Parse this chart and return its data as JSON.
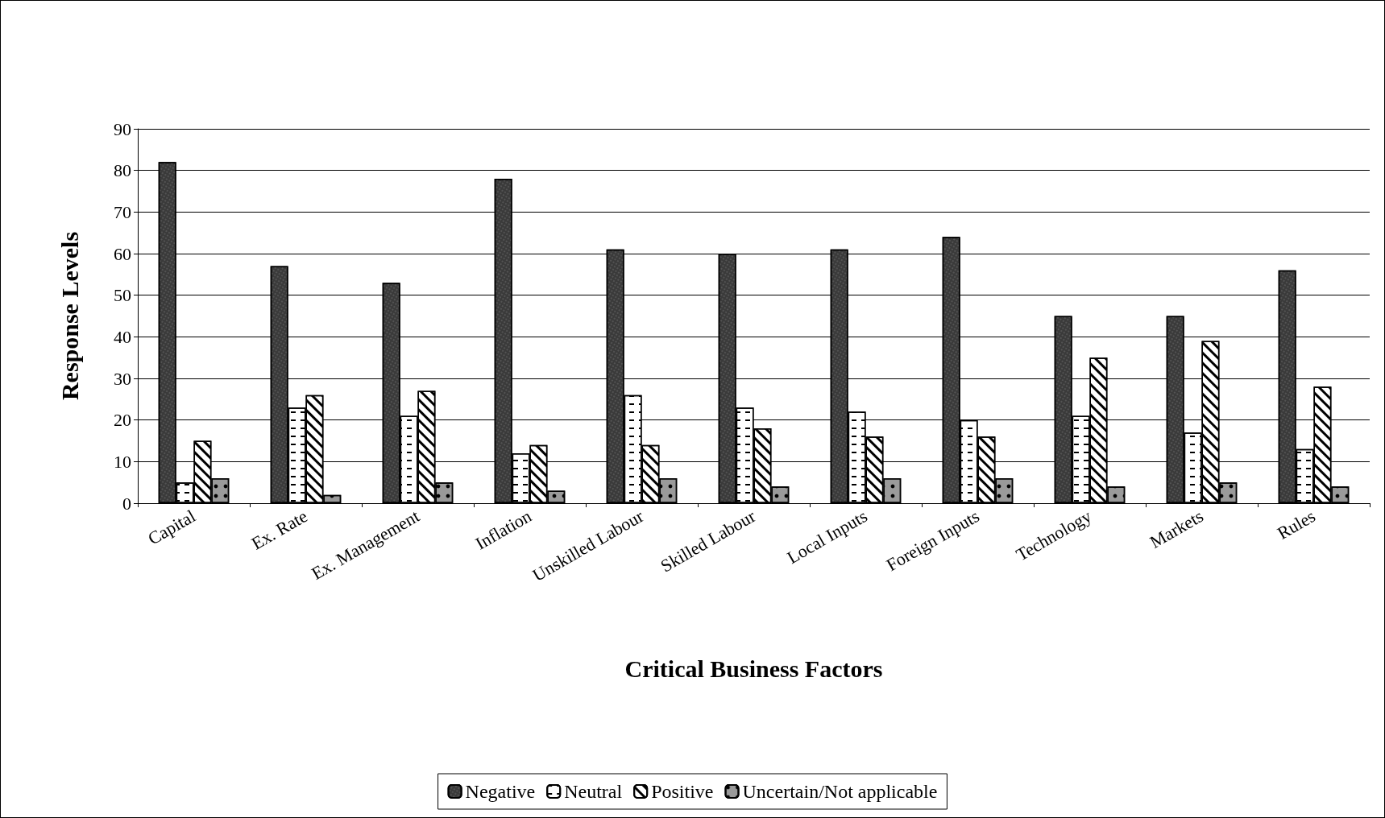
{
  "chart_data": {
    "type": "bar",
    "xlabel": "Critical Business Factors",
    "ylabel": "Response Levels",
    "categories": [
      "Capital",
      "Ex. Rate",
      "Ex. Management",
      "Inflation",
      "Unskilled Labour",
      "Skilled Labour",
      "Local Inputs",
      "Foreign Inputs",
      "Technology",
      "Markets",
      "Rules"
    ],
    "series": [
      {
        "name": "Negative",
        "color": "#3a3a3a",
        "values": [
          82,
          57,
          53,
          78,
          61,
          60,
          61,
          64,
          45,
          45,
          56
        ]
      },
      {
        "name": "Neutral",
        "color": "#ffffff",
        "values": [
          5,
          23,
          21,
          12,
          26,
          23,
          22,
          20,
          21,
          17,
          13
        ]
      },
      {
        "name": "Positive",
        "color": "#ffffff",
        "values": [
          15,
          26,
          27,
          14,
          14,
          18,
          16,
          16,
          35,
          39,
          28
        ]
      },
      {
        "name": "Uncertain/Not applicable",
        "color": "#9a9a9a",
        "values": [
          6,
          2,
          5,
          3,
          6,
          4,
          6,
          6,
          4,
          5,
          4
        ]
      }
    ],
    "ylim": [
      0,
      90
    ],
    "yticks": [
      0,
      10,
      20,
      30,
      40,
      50,
      60,
      70,
      80,
      90
    ],
    "grid": "y",
    "legend": "bottom"
  }
}
